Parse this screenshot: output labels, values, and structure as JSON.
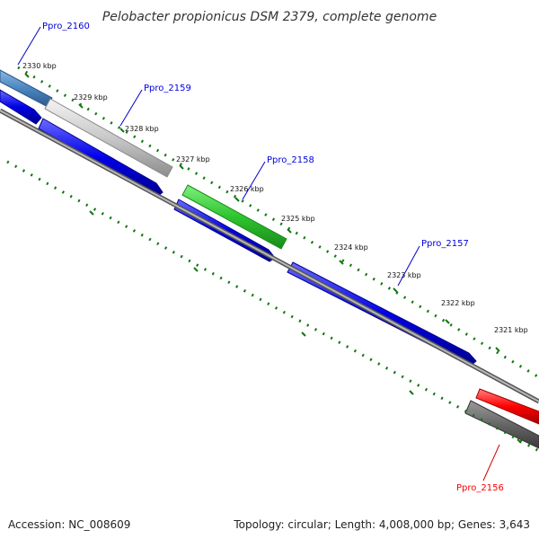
{
  "title": "Pelobacter propionicus DSM 2379, complete genome",
  "footer": {
    "accession": "Accession: NC_008609",
    "summary": "Topology: circular; Length: 4,008,000 bp; Genes: 3,643"
  },
  "ticks": [
    "2330 kbp",
    "2329 kbp",
    "2328 kbp",
    "2327 kbp",
    "2326 kbp",
    "2325 kbp",
    "2324 kbp",
    "2323 kbp",
    "2322 kbp",
    "2321 kbp"
  ],
  "genes": [
    {
      "name": "Ppro_2160",
      "color": "#4a86c0"
    },
    {
      "name": "Ppro_2159",
      "color": "#c0c0c0"
    },
    {
      "name": "Ppro_2158",
      "color": "#33cc33"
    },
    {
      "name": "Ppro_2157",
      "color": "#0000dd"
    },
    {
      "name": "Ppro_2156",
      "color": "#ff0000"
    }
  ],
  "colors": {
    "cds": "#0000dd",
    "backbone": "#777777",
    "gc_ticks": "#117711",
    "rrna_like": "#555555"
  }
}
